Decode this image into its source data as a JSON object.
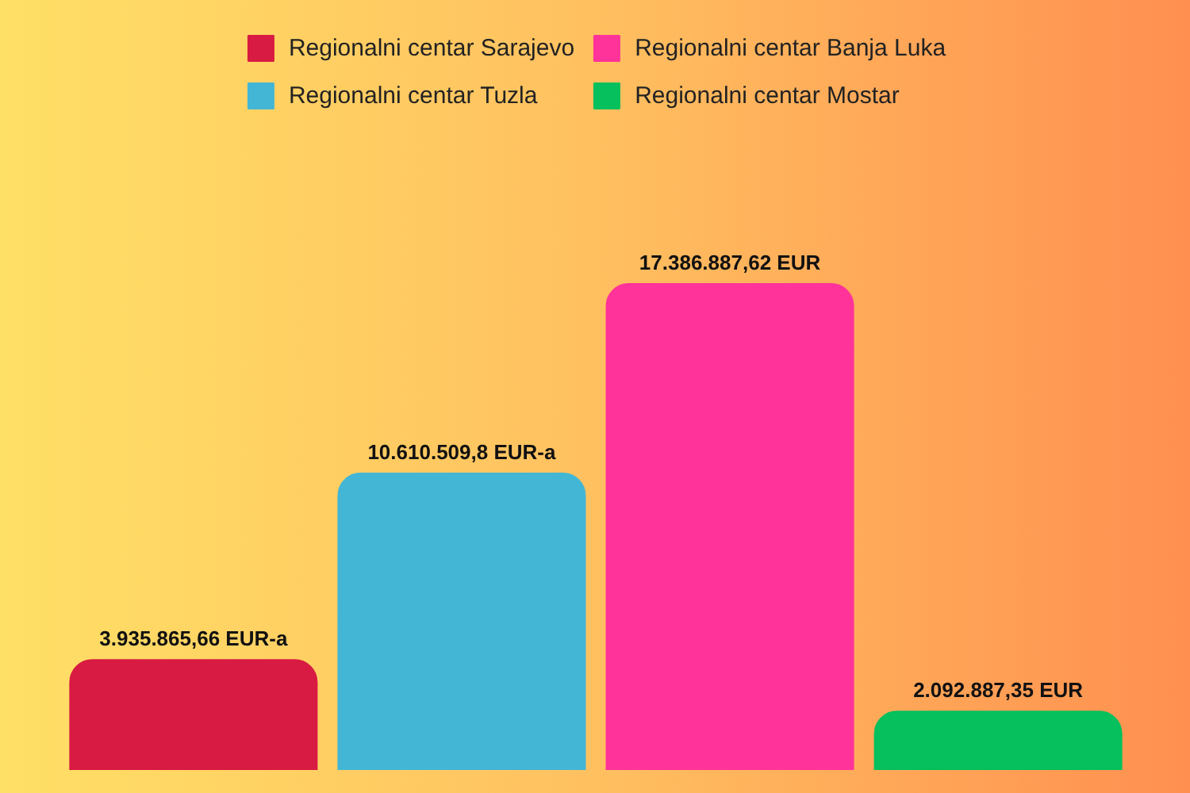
{
  "chart_data": {
    "type": "bar",
    "stacked": true,
    "categories": [
      null,
      null,
      null,
      null
    ],
    "series": [
      {
        "name": "Regionalni centar Sarajevo",
        "color": "#d81b42",
        "values": [
          3935865.66,
          null,
          null,
          null
        ],
        "value_labels": [
          "3.935.865,66 EUR-a",
          null,
          null,
          null
        ]
      },
      {
        "name": "Regionalni centar Tuzla",
        "color": "#43b6d6",
        "values": [
          null,
          10610509.8,
          null,
          null
        ],
        "value_labels": [
          null,
          "10.610.509,8 EUR-a",
          null,
          null
        ]
      },
      {
        "name": "Regionalni centar Banja Luka",
        "color": "#ff3399",
        "values": [
          null,
          null,
          17386887.62,
          null
        ],
        "value_labels": [
          null,
          null,
          "17.386.887,62 EUR",
          null
        ]
      },
      {
        "name": "Regionalni centar Mostar",
        "color": "#05c05c",
        "values": [
          null,
          null,
          null,
          2092887.35
        ],
        "value_labels": [
          null,
          null,
          null,
          "2.092.887,35 EUR"
        ]
      }
    ],
    "legend": "top",
    "tick_labels": false
  }
}
